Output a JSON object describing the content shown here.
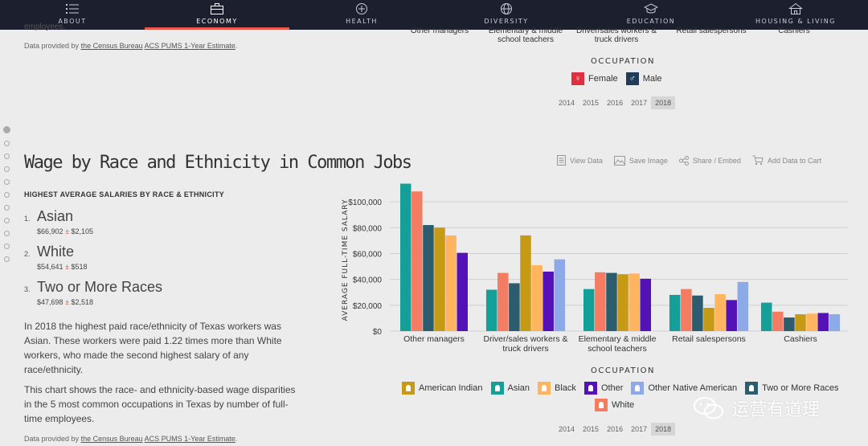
{
  "nav": {
    "items": [
      {
        "label": "ABOUT",
        "icon": "list-icon"
      },
      {
        "label": "ECONOMY",
        "icon": "briefcase-icon"
      },
      {
        "label": "HEALTH",
        "icon": "health-icon"
      },
      {
        "label": "DIVERSITY",
        "icon": "globe-icon"
      },
      {
        "label": "EDUCATION",
        "icon": "graduation-cap-icon"
      },
      {
        "label": "HOUSING & LIVING",
        "icon": "house-icon"
      }
    ],
    "active": "ECONOMY"
  },
  "top_section": {
    "left_remnant": "employees.",
    "provided_prefix": "Data provided by",
    "provided_link1": "the Census Bureau",
    "provided_link2": "ACS PUMS 1-Year Estimate",
    "provided_suffix": ".",
    "categories": [
      "Other managers",
      "Elementary & middle school teachers",
      "Driver/sales workers & truck drivers",
      "Retail salespersons",
      "Cashiers"
    ],
    "occupation_label": "OCCUPATION",
    "legend": [
      {
        "label": "Female",
        "color": "#e0303f",
        "icon": "female-icon"
      },
      {
        "label": "Male",
        "color": "#1f3b57",
        "icon": "male-icon"
      }
    ],
    "years": [
      "2014",
      "2015",
      "2016",
      "2017",
      "2018"
    ],
    "selected_year": "2018"
  },
  "section": {
    "title": "Wage by Race and Ethnicity in Common Jobs",
    "subtitle": "HIGHEST AVERAGE SALARIES BY RACE & ETHNICITY",
    "ranking": [
      {
        "num": "1.",
        "name": "Asian",
        "value": "$66,902",
        "pm": "±",
        "moe": "$2,105"
      },
      {
        "num": "2.",
        "name": "White",
        "value": "$54,641",
        "pm": "±",
        "moe": "$518"
      },
      {
        "num": "3.",
        "name": "Two or More Races",
        "value": "$47,698",
        "pm": "±",
        "moe": "$2,518"
      }
    ],
    "paragraph1": "In 2018 the highest paid race/ethnicity of Texas workers was Asian. These workers were paid 1.22 times more than White workers, who made the second highest salary of any race/ethnicity.",
    "paragraph2": "This chart shows the race- and ethnicity-based wage disparities in the 5 most common occupations in Texas by number of full-time employees.",
    "provided_prefix": "Data provided by",
    "provided_link1": "the Census Bureau",
    "provided_link2": "ACS PUMS 1-Year Estimate",
    "provided_suffix": "."
  },
  "actions": [
    {
      "label": "View Data",
      "icon": "document-icon"
    },
    {
      "label": "Save Image",
      "icon": "image-icon"
    },
    {
      "label": "Share / Embed",
      "icon": "share-icon"
    },
    {
      "label": "Add Data to Cart",
      "icon": "cart-icon"
    }
  ],
  "occupation_label": "OCCUPATION",
  "years": [
    "2014",
    "2015",
    "2016",
    "2017",
    "2018"
  ],
  "selected_year": "2018",
  "watermark": "运营有道理",
  "chart_data": {
    "type": "bar",
    "ylabel": "AVERAGE FULL-TIME SALARY",
    "xlabel": "OCCUPATION",
    "ylim": [
      0,
      110000
    ],
    "yticks": [
      "$0",
      "$20,000",
      "$40,000",
      "$60,000",
      "$80,000",
      "$100,000"
    ],
    "categories": [
      [
        "Other managers"
      ],
      [
        "Driver/sales workers &",
        "truck drivers"
      ],
      [
        "Elementary & middle",
        "school teachers"
      ],
      [
        "Retail salespersons"
      ],
      [
        "Cashiers"
      ]
    ],
    "series": [
      {
        "name": "Asian",
        "color": "#14a099",
        "values": [
          114000,
          32000,
          32500,
          28000,
          22000
        ]
      },
      {
        "name": "White",
        "color": "#f47c62",
        "values": [
          108000,
          45000,
          45500,
          32500,
          15000
        ]
      },
      {
        "name": "Two or More Races",
        "color": "#2b5d6e",
        "values": [
          82000,
          37000,
          45000,
          27500,
          10500
        ]
      },
      {
        "name": "American Indian",
        "color": "#c79a16",
        "values": [
          80000,
          74000,
          44000,
          18000,
          13000
        ]
      },
      {
        "name": "Black",
        "color": "#ffb45f",
        "values": [
          74000,
          51000,
          44500,
          28500,
          13500
        ]
      },
      {
        "name": "Other",
        "color": "#5411b6",
        "values": [
          60500,
          46000,
          40500,
          24000,
          14000
        ]
      },
      {
        "name": "Other Native American",
        "color": "#8ea9e8",
        "values": [
          null,
          55500,
          null,
          38000,
          13000
        ]
      }
    ],
    "legend_order": [
      "American Indian",
      "Asian",
      "Black",
      "Other",
      "Other Native American",
      "Two or More Races",
      "White"
    ]
  }
}
